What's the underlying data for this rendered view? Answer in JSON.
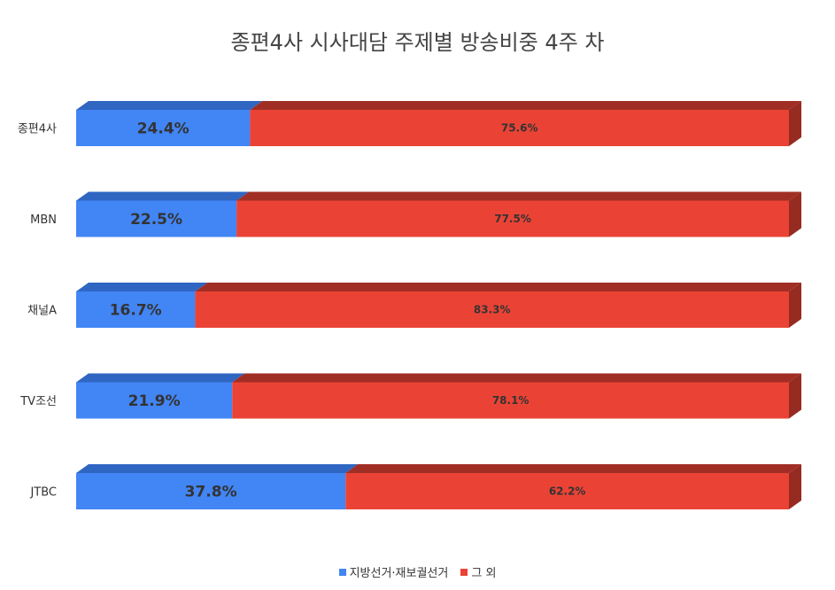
{
  "chart_data": {
    "type": "bar",
    "orientation": "horizontal",
    "stacked": "percent",
    "title": "종편4사 시사대담 주제별 방송비중 4주 차",
    "categories": [
      "종편4사",
      "MBN",
      "채널A",
      "TV조선",
      "JTBC"
    ],
    "series": [
      {
        "name": "지방선거·재보궐선거",
        "color": "#4285f4",
        "values": [
          24.4,
          22.5,
          16.7,
          21.9,
          37.8
        ],
        "labels": [
          "24.4%",
          "22.5%",
          "16.7%",
          "21.9%",
          "37.8%"
        ]
      },
      {
        "name": "그 외",
        "color": "#ea4335",
        "values": [
          75.6,
          77.5,
          83.3,
          78.1,
          62.2
        ],
        "labels": [
          "75.6%",
          "77.5%",
          "83.3%",
          "78.1%",
          "62.2%"
        ]
      }
    ],
    "xlim": [
      0,
      100
    ],
    "grid": false,
    "legend_position": "bottom"
  }
}
